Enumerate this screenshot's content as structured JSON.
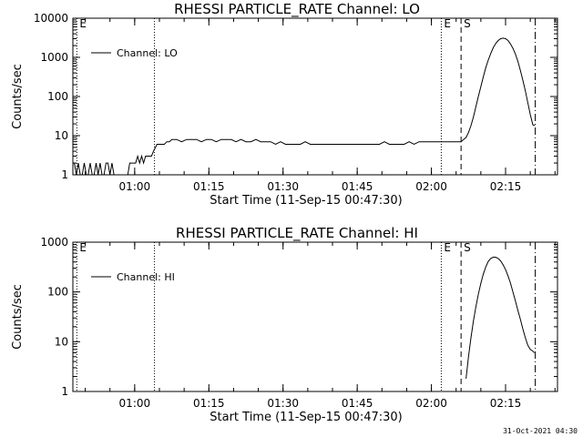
{
  "timestamp": "31-Oct-2021 04:30",
  "colors": {
    "line": "#000000",
    "background": "#ffffff"
  },
  "chart_data": [
    {
      "type": "line",
      "title": "RHESSI PARTICLE_RATE Channel: LO",
      "xlabel": "Start Time (11-Sep-15 00:47:30)",
      "ylabel": "Counts/sec",
      "x_unit": "minutes after 00:47:30",
      "xlim": [
        0,
        98
      ],
      "ylim": [
        1,
        10000
      ],
      "yscale": "log",
      "yticks": [
        {
          "value": 1,
          "label": "1"
        },
        {
          "value": 10,
          "label": "10"
        },
        {
          "value": 100,
          "label": "100"
        },
        {
          "value": 1000,
          "label": "1000"
        },
        {
          "value": 10000,
          "label": "10000"
        }
      ],
      "xticks": [
        {
          "value": 12.5,
          "label": "01:00"
        },
        {
          "value": 27.5,
          "label": "01:15"
        },
        {
          "value": 42.5,
          "label": "01:30"
        },
        {
          "value": 57.5,
          "label": "01:45"
        },
        {
          "value": 72.5,
          "label": "02:00"
        },
        {
          "value": 87.5,
          "label": "02:15"
        }
      ],
      "legend": {
        "label": "Channel: LO",
        "position": "top-left"
      },
      "markers": [
        {
          "x": 0.8,
          "style": "dotted",
          "label": "E"
        },
        {
          "x": 16.5,
          "style": "dotted",
          "label": ""
        },
        {
          "x": 74.5,
          "style": "dotted",
          "label": "E"
        },
        {
          "x": 78.5,
          "style": "dashed",
          "label": "S"
        },
        {
          "x": 93.5,
          "style": "dashdot",
          "label": ""
        }
      ],
      "series": [
        {
          "x": [
            0.3,
            0.7,
            1.1,
            1.5,
            1.9,
            2.3,
            2.7,
            3.1,
            3.5,
            3.9,
            4.3,
            4.7,
            5.1,
            5.5,
            5.9,
            6.3,
            6.7,
            7.1,
            7.5,
            7.9,
            8.3,
            8.7,
            9.1,
            9.5,
            9.9,
            10.3,
            10.7,
            11.1,
            11.5,
            11.9,
            12.3,
            12.7,
            13.1,
            13.5,
            13.9,
            14.3,
            14.7,
            15.1,
            15.5,
            15.9,
            16.3,
            16.7,
            17.0,
            17.5,
            18.0,
            18.5,
            19.0,
            19.5,
            20.0,
            21,
            22,
            23,
            24,
            25,
            26,
            27,
            28,
            29,
            30,
            31,
            32,
            33,
            34,
            35,
            36,
            37,
            38,
            39,
            40,
            41,
            42,
            43,
            44,
            45,
            46,
            47,
            48,
            49,
            50,
            51,
            52,
            53,
            54,
            55,
            56,
            57,
            58,
            59,
            60,
            61,
            62,
            63,
            64,
            65,
            66,
            67,
            68,
            69,
            70,
            71,
            72,
            73,
            74,
            75,
            76,
            77,
            77.5,
            78,
            78.5,
            79,
            79.5,
            80,
            80.5,
            81,
            81.5,
            82,
            82.5,
            83,
            83.5,
            84,
            84.5,
            85,
            85.5,
            86,
            86.5,
            87,
            87.5,
            88,
            88.5,
            89,
            89.5,
            90,
            90.5,
            91,
            91.5,
            92,
            92.5,
            93,
            93.4
          ],
          "y": [
            2,
            1,
            2,
            1,
            1,
            2,
            1,
            1,
            2,
            1,
            1,
            2,
            1,
            2,
            1,
            1,
            2,
            2,
            1,
            2,
            1,
            1,
            1,
            1,
            1,
            1,
            1,
            1,
            2,
            2,
            2,
            2,
            3,
            2,
            3,
            2,
            3,
            3,
            3,
            3,
            4,
            5,
            6,
            6,
            6,
            6,
            7,
            7,
            8,
            8,
            7,
            8,
            8,
            8,
            7,
            8,
            8,
            7,
            8,
            8,
            8,
            7,
            8,
            7,
            7,
            8,
            7,
            7,
            7,
            6,
            7,
            6,
            6,
            6,
            6,
            7,
            6,
            6,
            6,
            6,
            6,
            6,
            6,
            6,
            6,
            6,
            6,
            6,
            6,
            6,
            6,
            7,
            6,
            6,
            6,
            6,
            7,
            6,
            7,
            7,
            7,
            7,
            7,
            7,
            7,
            7,
            7,
            7,
            7,
            8,
            9,
            12,
            18,
            30,
            55,
            100,
            180,
            320,
            550,
            850,
            1250,
            1750,
            2250,
            2700,
            3000,
            3100,
            3000,
            2700,
            2200,
            1700,
            1200,
            780,
            460,
            260,
            140,
            70,
            35,
            19,
            18
          ]
        }
      ]
    },
    {
      "type": "line",
      "title": "RHESSI PARTICLE_RATE Channel: HI",
      "xlabel": "Start Time (11-Sep-15 00:47:30)",
      "ylabel": "Counts/sec",
      "x_unit": "minutes after 00:47:30",
      "xlim": [
        0,
        98
      ],
      "ylim": [
        1,
        1000
      ],
      "yscale": "log",
      "yticks": [
        {
          "value": 1,
          "label": "1"
        },
        {
          "value": 10,
          "label": "10"
        },
        {
          "value": 100,
          "label": "100"
        },
        {
          "value": 1000,
          "label": "1000"
        }
      ],
      "xticks": [
        {
          "value": 12.5,
          "label": "01:00"
        },
        {
          "value": 27.5,
          "label": "01:15"
        },
        {
          "value": 42.5,
          "label": "01:30"
        },
        {
          "value": 57.5,
          "label": "01:45"
        },
        {
          "value": 72.5,
          "label": "02:00"
        },
        {
          "value": 87.5,
          "label": "02:15"
        }
      ],
      "legend": {
        "label": "Channel: HI",
        "position": "top-left"
      },
      "markers": [
        {
          "x": 0.8,
          "style": "dotted",
          "label": "E"
        },
        {
          "x": 16.5,
          "style": "dotted",
          "label": ""
        },
        {
          "x": 74.5,
          "style": "dotted",
          "label": "E"
        },
        {
          "x": 78.5,
          "style": "dashed",
          "label": "S"
        },
        {
          "x": 93.5,
          "style": "dashdot",
          "label": ""
        }
      ],
      "series": [
        {
          "x": [
            79.5,
            80,
            80.5,
            81,
            81.5,
            82,
            82.5,
            83,
            83.5,
            84,
            84.5,
            85,
            85.5,
            86,
            86.5,
            87,
            87.5,
            88,
            88.5,
            89,
            89.5,
            90,
            90.5,
            91,
            91.5,
            92,
            92.5,
            93,
            93.3
          ],
          "y": [
            1.8,
            5,
            12,
            26,
            50,
            90,
            150,
            230,
            320,
            410,
            470,
            500,
            500,
            470,
            420,
            350,
            280,
            210,
            150,
            100,
            65,
            42,
            28,
            18,
            12,
            8.5,
            7,
            6.5,
            6
          ]
        }
      ]
    }
  ]
}
